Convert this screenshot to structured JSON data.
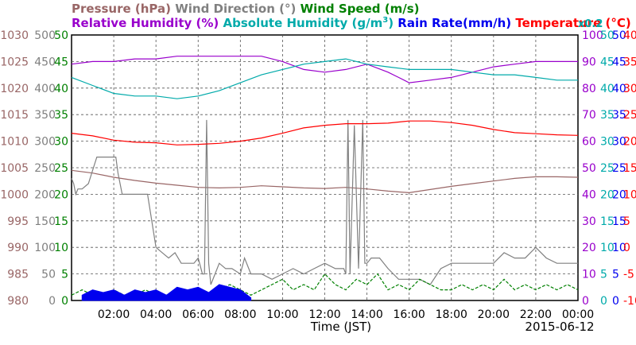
{
  "chart_data": {
    "type": "line",
    "date": "2015-06-12",
    "xlabel": "Time (JST)",
    "x_ticks": [
      "02:00",
      "04:00",
      "06:00",
      "08:00",
      "10:00",
      "12:00",
      "14:00",
      "16:00",
      "18:00",
      "20:00",
      "22:00",
      "00:00"
    ],
    "xlim_hours": [
      0,
      24
    ],
    "grid": true,
    "axes": [
      {
        "key": "pressure",
        "label": "Pressure (hPa)",
        "color": "#996666",
        "side": "left",
        "ticks": [
          "980",
          "985",
          "990",
          "995",
          "1000",
          "1005",
          "1010",
          "1015",
          "1020",
          "1025",
          "1030"
        ],
        "range": [
          980,
          1030
        ]
      },
      {
        "key": "wind_dir",
        "label": "Wind Direction (°)",
        "color": "#808080",
        "side": "left",
        "ticks": [
          "0",
          "50",
          "100",
          "150",
          "200",
          "250",
          "300",
          "350",
          "400",
          "450",
          "500"
        ],
        "range": [
          0,
          500
        ]
      },
      {
        "key": "wind_speed",
        "label": "Wind Speed (m/s)",
        "color": "#008000",
        "side": "left",
        "ticks": [
          "0",
          "5",
          "10",
          "15",
          "20",
          "25",
          "30",
          "35",
          "40",
          "45",
          "50"
        ],
        "range": [
          0,
          50
        ]
      },
      {
        "key": "rh",
        "label": "Relative Humidity (%)",
        "color": "#9900cc",
        "side": "right",
        "ticks": [
          "0",
          "10",
          "20",
          "30",
          "40",
          "50",
          "60",
          "70",
          "80",
          "90",
          "100"
        ],
        "range": [
          0,
          100
        ]
      },
      {
        "key": "ah",
        "label": "Absolute Humidity (g/m",
        "label_sup": "3",
        "label_end": ")",
        "color": "#00aaaa",
        "side": "right",
        "ticks": [
          "0",
          "5",
          "10",
          "15",
          "20",
          "25",
          "30",
          "35",
          "40",
          "45",
          "50"
        ],
        "range": [
          0,
          50
        ],
        "note": "x0.2"
      },
      {
        "key": "rain",
        "label": "Rain Rate(mm/h)",
        "color": "#0000ee",
        "side": "right",
        "ticks": [
          "0",
          "5",
          "10",
          "15",
          "20",
          "25",
          "30",
          "35",
          "40",
          "45",
          "50"
        ],
        "range": [
          0,
          50
        ]
      },
      {
        "key": "temp",
        "label": "Temperature (°C)",
        "color": "#ff0000",
        "side": "right",
        "ticks": [
          "-10",
          "-5",
          "0",
          "5",
          "10",
          "15",
          "20",
          "25",
          "30",
          "35",
          "40"
        ],
        "range": [
          -10,
          40
        ]
      }
    ],
    "series": [
      {
        "name": "Pressure (hPa)",
        "color": "#996666",
        "x": [
          0,
          1,
          2,
          3,
          4,
          5,
          6,
          7,
          8,
          9,
          10,
          11,
          12,
          13,
          14,
          15,
          16,
          17,
          18,
          19,
          20,
          21,
          22,
          23,
          24
        ],
        "y": [
          1004.5,
          1004,
          1003.2,
          1002.6,
          1002.1,
          1001.7,
          1001.3,
          1001.2,
          1001.3,
          1001.6,
          1001.4,
          1001.2,
          1001.1,
          1001.3,
          1001,
          1000.6,
          1000.3,
          1000.9,
          1001.5,
          1002,
          1002.5,
          1003,
          1003.3,
          1003.3,
          1003.2
        ]
      },
      {
        "name": "Wind Direction (°)",
        "color": "#808080",
        "x": [
          0,
          0.1,
          0.2,
          0.3,
          0.5,
          0.8,
          1.2,
          1.6,
          2,
          2.1,
          2.2,
          2.4,
          2.6,
          3.0,
          3.2,
          3.4,
          3.6,
          4,
          4.3,
          4.6,
          4.9,
          5.2,
          5.5,
          5.8,
          6.0,
          6.2,
          6.3,
          6.4,
          6.5,
          6.6,
          6.8,
          7,
          7.3,
          7.6,
          8,
          8.2,
          8.5,
          9,
          9.5,
          10,
          10.5,
          11,
          11.5,
          12,
          12.5,
          12.9,
          13.0,
          13.1,
          13.2,
          13.4,
          13.6,
          13.8,
          13.9,
          14.0,
          14.2,
          14.6,
          15,
          15.5,
          16,
          16.5,
          17,
          17.5,
          18,
          18.5,
          19,
          19.5,
          20,
          20.5,
          21,
          21.5,
          22,
          22.5,
          23,
          23.5,
          24
        ],
        "y": [
          230,
          220,
          200,
          210,
          210,
          220,
          270,
          270,
          270,
          270,
          240,
          200,
          200,
          200,
          200,
          200,
          200,
          100,
          90,
          80,
          90,
          70,
          70,
          70,
          80,
          50,
          50,
          340,
          70,
          30,
          50,
          70,
          60,
          60,
          50,
          80,
          50,
          50,
          40,
          50,
          60,
          50,
          60,
          70,
          60,
          60,
          50,
          340,
          50,
          330,
          60,
          340,
          70,
          70,
          80,
          80,
          60,
          40,
          40,
          40,
          30,
          60,
          70,
          70,
          70,
          70,
          70,
          90,
          80,
          80,
          100,
          80,
          70,
          70,
          70
        ]
      },
      {
        "name": "Wind Speed (m/s)",
        "color": "#008000",
        "x": [
          0,
          0.5,
          1,
          1.5,
          2,
          2.5,
          3,
          3.5,
          4,
          4.5,
          5,
          5.5,
          6,
          6.5,
          7,
          7.5,
          8,
          8.5,
          9,
          9.5,
          10,
          10.5,
          11,
          11.5,
          12,
          12.5,
          13,
          13.5,
          14,
          14.5,
          15,
          15.5,
          16,
          16.5,
          17,
          17.5,
          18,
          18.5,
          19,
          19.5,
          20,
          20.5,
          21,
          21.5,
          22,
          22.5,
          23,
          23.5,
          24
        ],
        "y": [
          1,
          2,
          1,
          1,
          2,
          1,
          1,
          2,
          1,
          1,
          2,
          1,
          2,
          1,
          2,
          3,
          2,
          1,
          2,
          3,
          4,
          2,
          3,
          2,
          5,
          3,
          2,
          4,
          3,
          5,
          2,
          3,
          2,
          4,
          3,
          2,
          2,
          3,
          2,
          3,
          2,
          4,
          2,
          3,
          2,
          3,
          2,
          3,
          2
        ]
      },
      {
        "name": "Relative Humidity (%)",
        "color": "#9900cc",
        "x": [
          0,
          1,
          2,
          3,
          4,
          5,
          6,
          7,
          8,
          9,
          10,
          11,
          12,
          13,
          14,
          15,
          15.5,
          16,
          17,
          18,
          19,
          20,
          21,
          22,
          23,
          24
        ],
        "y": [
          89,
          90,
          90,
          91,
          91,
          92,
          92,
          92,
          92,
          92,
          90,
          87,
          86,
          87,
          89,
          86,
          84,
          82,
          83,
          84,
          86,
          88,
          89,
          90,
          90,
          90
        ]
      },
      {
        "name": "Absolute Humidity (g/m³)",
        "color": "#00aaaa",
        "x": [
          0,
          1,
          2,
          3,
          4,
          5,
          6,
          7,
          8,
          9,
          10,
          11,
          12,
          13,
          14,
          15,
          16,
          17,
          18,
          19,
          20,
          21,
          22,
          23,
          24
        ],
        "y": [
          42,
          40.5,
          39,
          38.5,
          38.5,
          38,
          38.5,
          39.5,
          41,
          42.5,
          43.5,
          44.5,
          45,
          45.5,
          44.5,
          44,
          43.5,
          43.5,
          43.5,
          43,
          42.5,
          42.5,
          42,
          41.5,
          41.5
        ]
      },
      {
        "name": "Rain Rate(mm/h)",
        "color": "#0000ee",
        "x": [
          0.5,
          1,
          1.5,
          2,
          2.5,
          3,
          3.5,
          4,
          4.5,
          5,
          5.5,
          6,
          6.5,
          7,
          7.5,
          8,
          8.5
        ],
        "y": [
          1,
          2,
          1.5,
          2,
          1,
          2,
          1.5,
          2,
          1,
          2.5,
          2,
          2.5,
          1.5,
          3,
          2.5,
          2,
          0.5
        ]
      },
      {
        "name": "Temperature (°C)",
        "color": "#ff0000",
        "x": [
          0,
          1,
          2,
          3,
          4,
          5,
          6,
          7,
          8,
          9,
          10,
          11,
          12,
          13,
          14,
          15,
          16,
          17,
          18,
          19,
          20,
          21,
          22,
          23,
          24
        ],
        "y": [
          21.5,
          21,
          20.2,
          19.8,
          19.7,
          19.3,
          19.4,
          19.6,
          20,
          20.6,
          21.5,
          22.5,
          23,
          23.3,
          23.3,
          23.4,
          23.8,
          23.8,
          23.5,
          23,
          22.2,
          21.6,
          21.4,
          21.2,
          21.1
        ]
      }
    ]
  }
}
